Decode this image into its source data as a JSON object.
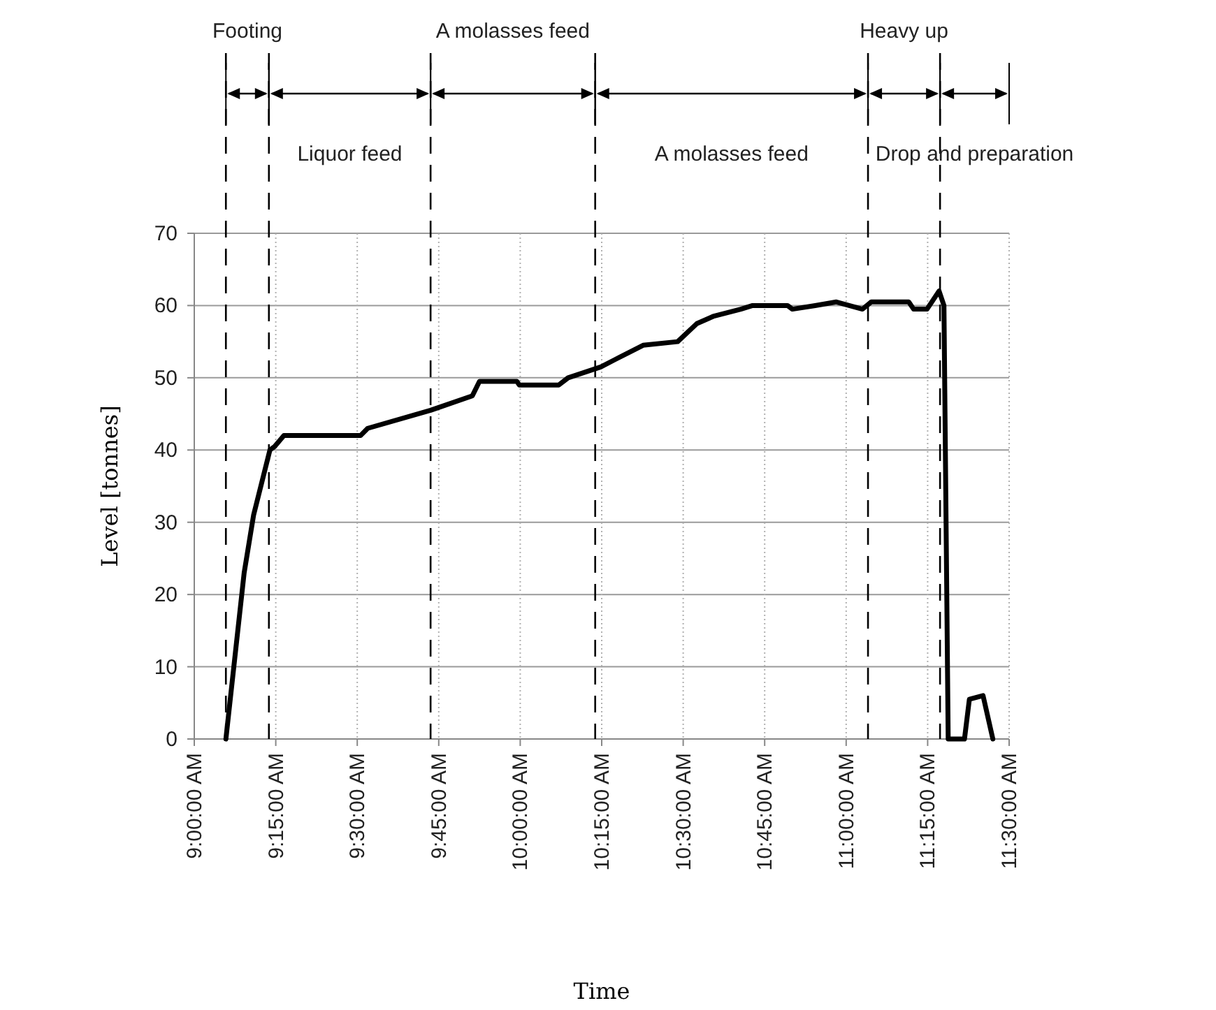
{
  "chart_data": {
    "type": "line",
    "xlabel": "Time",
    "ylabel": "Level [tonnes]",
    "xlim": [
      9,
      11.5
    ],
    "ylim": [
      0,
      70
    ],
    "xticks": [
      {
        "value": 9,
        "label": "9:00:00 AM"
      },
      {
        "value": 9.25,
        "label": "9:15:00 AM"
      },
      {
        "value": 9.5,
        "label": "9:30:00 AM"
      },
      {
        "value": 9.75,
        "label": "9:45:00 AM"
      },
      {
        "value": 10,
        "label": "10:00:00 AM"
      },
      {
        "value": 10.25,
        "label": "10:15:00 AM"
      },
      {
        "value": 10.5,
        "label": "10:30:00 AM"
      },
      {
        "value": 10.75,
        "label": "10:45:00 AM"
      },
      {
        "value": 11,
        "label": "11:00:00 AM"
      },
      {
        "value": 11.25,
        "label": "11:15:00 AM"
      },
      {
        "value": 11.5,
        "label": "11:30:00 AM"
      }
    ],
    "yticks": [
      0,
      10,
      20,
      30,
      40,
      50,
      60,
      70
    ],
    "grid": true,
    "marker": "none",
    "line_style": "solid",
    "x": [
      9.097,
      9.153,
      9.182,
      9.232,
      9.247,
      9.275,
      9.31,
      9.51,
      9.532,
      9.725,
      9.853,
      9.875,
      9.99,
      9.997,
      10.118,
      10.147,
      10.247,
      10.29,
      10.377,
      10.483,
      10.542,
      10.592,
      10.677,
      10.713,
      10.82,
      10.835,
      10.905,
      10.97,
      11.05,
      11.077,
      11.192,
      11.207,
      11.248,
      11.285,
      11.3,
      11.313,
      11.363,
      11.378,
      11.42,
      11.45
    ],
    "series": [
      {
        "color": "#000000",
        "values": [
          0,
          23,
          31,
          40,
          40.5,
          42,
          42,
          42,
          43,
          45.5,
          47.5,
          49.5,
          49.5,
          49,
          49,
          50,
          51.5,
          52.5,
          54.5,
          55,
          57.5,
          58.5,
          59.5,
          60,
          60,
          59.5,
          60,
          60.5,
          59.5,
          60.5,
          60.5,
          59.5,
          59.5,
          62,
          60,
          0,
          0,
          5.5,
          6,
          0
        ]
      }
    ],
    "ref_lines": [
      {
        "axis": "x",
        "value": 9.097,
        "color": "#000000",
        "line_style": "dashed"
      },
      {
        "axis": "x",
        "value": 9.229,
        "color": "#000000",
        "line_style": "dashed"
      },
      {
        "axis": "x",
        "value": 9.725,
        "color": "#000000",
        "line_style": "dashed"
      },
      {
        "axis": "x",
        "value": 10.23,
        "color": "#000000",
        "line_style": "dashed"
      },
      {
        "axis": "x",
        "value": 11.067,
        "color": "#000000",
        "line_style": "dashed"
      },
      {
        "axis": "x",
        "value": 11.288,
        "color": "#000000",
        "line_style": "dashed"
      }
    ],
    "annotations": [
      "Footing",
      "Liquor feed",
      "A molasses feed",
      "A molasses feed",
      "Heavy up",
      "Drop and preparation"
    ]
  }
}
